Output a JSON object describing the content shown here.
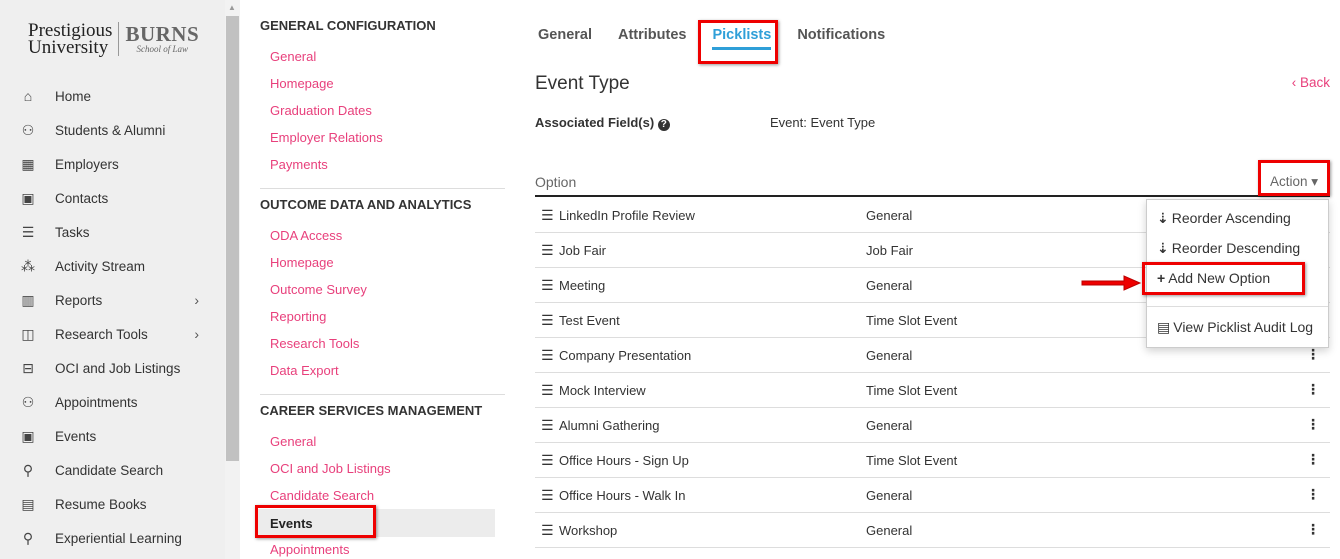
{
  "logo": {
    "line1": "Prestigious",
    "line2": "University",
    "brand": "BURNS",
    "sub": "School of Law"
  },
  "sidebar": {
    "items": [
      {
        "label": "Home",
        "icon": "home-icon",
        "glyph": "⌂"
      },
      {
        "label": "Students & Alumni",
        "icon": "users-icon",
        "glyph": "⚇"
      },
      {
        "label": "Employers",
        "icon": "building-icon",
        "glyph": "▦"
      },
      {
        "label": "Contacts",
        "icon": "contact-book-icon",
        "glyph": "▣"
      },
      {
        "label": "Tasks",
        "icon": "checklist-icon",
        "glyph": "☰"
      },
      {
        "label": "Activity Stream",
        "icon": "network-icon",
        "glyph": "⁂"
      },
      {
        "label": "Reports",
        "icon": "bar-chart-icon",
        "glyph": "▥",
        "chevron": true
      },
      {
        "label": "Research Tools",
        "icon": "research-icon",
        "glyph": "◫",
        "chevron": true
      },
      {
        "label": "OCI and Job Listings",
        "icon": "briefcase-icon",
        "glyph": "⊟"
      },
      {
        "label": "Appointments",
        "icon": "people-icon",
        "glyph": "⚇"
      },
      {
        "label": "Events",
        "icon": "calendar-icon",
        "glyph": "▣"
      },
      {
        "label": "Candidate Search",
        "icon": "graduate-icon",
        "glyph": "⚲"
      },
      {
        "label": "Resume Books",
        "icon": "resume-icon",
        "glyph": "▤"
      },
      {
        "label": "Experiential Learning",
        "icon": "person-icon",
        "glyph": "⚲"
      }
    ]
  },
  "config": {
    "sections": [
      {
        "heading": "GENERAL CONFIGURATION",
        "links": [
          "General",
          "Homepage",
          "Graduation Dates",
          "Employer Relations",
          "Payments"
        ]
      },
      {
        "heading": "OUTCOME DATA AND ANALYTICS",
        "links": [
          "ODA Access",
          "Homepage",
          "Outcome Survey",
          "Reporting",
          "Research Tools",
          "Data Export"
        ]
      },
      {
        "heading": "CAREER SERVICES MANAGEMENT",
        "links": [
          "General",
          "OCI and Job Listings",
          "Candidate Search",
          "Events",
          "Appointments"
        ]
      }
    ],
    "active": "Events"
  },
  "tabs": [
    "General",
    "Attributes",
    "Picklists",
    "Notifications"
  ],
  "active_tab": "Picklists",
  "title": "Event Type",
  "back": "‹ Back",
  "associated_label": "Associated Field(s)",
  "associated_value": "Event: Event Type",
  "table": {
    "col_option": "Option",
    "action": "Action ▾",
    "rows": [
      {
        "name": "LinkedIn Profile Review",
        "type": "General"
      },
      {
        "name": "Job Fair",
        "type": "Job Fair"
      },
      {
        "name": "Meeting",
        "type": "General"
      },
      {
        "name": "Test Event",
        "type": "Time Slot Event"
      },
      {
        "name": "Company Presentation",
        "type": "General"
      },
      {
        "name": "Mock Interview",
        "type": "Time Slot Event"
      },
      {
        "name": "Alumni Gathering",
        "type": "General"
      },
      {
        "name": "Office Hours - Sign Up",
        "type": "Time Slot Event"
      },
      {
        "name": "Office Hours - Walk In",
        "type": "General"
      },
      {
        "name": "Workshop",
        "type": "General"
      }
    ]
  },
  "action_menu": [
    {
      "label": "Reorder Ascending",
      "icon": "sort-ascending-icon",
      "glyph": "⇣"
    },
    {
      "label": "Reorder Descending",
      "icon": "sort-descending-icon",
      "glyph": "⇣"
    },
    {
      "label": "Add New Option",
      "icon": "plus-icon",
      "glyph": "+"
    },
    {
      "label": "View Picklist Audit Log",
      "icon": "list-icon",
      "glyph": "▤"
    }
  ],
  "colors": {
    "accent": "#2f9fd8",
    "link": "#e8407c",
    "highlight": "#ee0000"
  }
}
